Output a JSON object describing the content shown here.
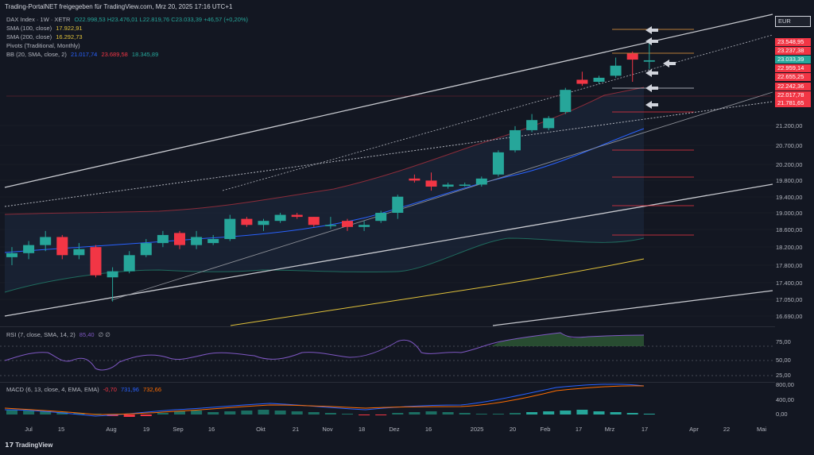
{
  "header": {
    "title": "Trading-PortalNET freigegeben für TradingView.com, Mrz 20, 2025 17:16 UTC+1"
  },
  "legend": {
    "symbol": "DAX Index · 1W · XETR",
    "ohlc": "O22.998,53 H23.476,01 L22.819,76 C23.033,39 +46,57 (+0,20%)",
    "sma100_label": "SMA (100, close)",
    "sma100_value": "17.922,91",
    "sma200_label": "SMA (200, close)",
    "sma200_value": "16.292,73",
    "pivots_label": "Pivots (Traditional, Monthly)",
    "bb_label": "BB (20, SMA, close, 2)",
    "bb_v1": "21.017,74",
    "bb_v2": "23.689,58",
    "bb_v3": "18.345,89"
  },
  "currency": "EUR",
  "price_axis": {
    "levels": [
      "21.200,00",
      "20.700,00",
      "20.200,00",
      "19.800,00",
      "19.400,00",
      "19.000,00",
      "18.600,00",
      "18.200,00",
      "17.800,00",
      "17.400,00",
      "17.050,00",
      "16.690,00"
    ],
    "tags": [
      "23.548,95",
      "23.237,38",
      "23.033,39",
      "22.959,14",
      "22.655,25",
      "22.242,36",
      "22.017,78",
      "21.781,65"
    ]
  },
  "time_axis": [
    "Jul",
    "15",
    "Aug",
    "19",
    "Sep",
    "16",
    "Okt",
    "21",
    "Nov",
    "18",
    "Dez",
    "16",
    "2025",
    "20",
    "Feb",
    "17",
    "Mrz",
    "17",
    "Apr",
    "22",
    "Mai"
  ],
  "rsi": {
    "label": "RSI (7, close, SMA, 14, 2)",
    "value": "85,40",
    "extra": "∅ ∅",
    "levels": [
      "75,00",
      "50,00",
      "25,00"
    ]
  },
  "macd": {
    "label": "MACD (6, 13, close, 4, EMA, EMA)",
    "v1": "-0,70",
    "v2": "731,96",
    "v3": "732,66",
    "levels": [
      "800,00",
      "400,00",
      "0,00"
    ]
  },
  "footer": {
    "brand": "TradingView"
  },
  "colors": {
    "bg": "#131722",
    "up": "#26a69a",
    "down": "#f23645",
    "grid": "#2a2e39",
    "sma100": "#e2c33b",
    "bb_mid": "#2962ff"
  },
  "chart_data": {
    "type": "candlestick",
    "timeframe": "1W",
    "price_range": [
      16690,
      23800
    ],
    "candles": [
      {
        "o": 18150,
        "h": 18400,
        "l": 17950,
        "c": 18250
      },
      {
        "o": 18250,
        "h": 18550,
        "l": 18100,
        "c": 18450
      },
      {
        "o": 18450,
        "h": 18800,
        "l": 18300,
        "c": 18650
      },
      {
        "o": 18650,
        "h": 18700,
        "l": 18100,
        "c": 18200
      },
      {
        "o": 18200,
        "h": 18500,
        "l": 18100,
        "c": 18350
      },
      {
        "o": 18400,
        "h": 18450,
        "l": 17650,
        "c": 17700
      },
      {
        "o": 17650,
        "h": 17900,
        "l": 17050,
        "c": 17800
      },
      {
        "o": 17800,
        "h": 18300,
        "l": 17750,
        "c": 18200
      },
      {
        "o": 18200,
        "h": 18600,
        "l": 18150,
        "c": 18500
      },
      {
        "o": 18500,
        "h": 18800,
        "l": 18400,
        "c": 18700
      },
      {
        "o": 18750,
        "h": 18800,
        "l": 18350,
        "c": 18450
      },
      {
        "o": 18450,
        "h": 18800,
        "l": 18350,
        "c": 18650
      },
      {
        "o": 18500,
        "h": 18700,
        "l": 18450,
        "c": 18600
      },
      {
        "o": 18600,
        "h": 19200,
        "l": 18550,
        "c": 19100
      },
      {
        "o": 19100,
        "h": 19150,
        "l": 18900,
        "c": 18950
      },
      {
        "o": 18950,
        "h": 19100,
        "l": 18800,
        "c": 19050
      },
      {
        "o": 19050,
        "h": 19250,
        "l": 19000,
        "c": 19200
      },
      {
        "o": 19200,
        "h": 19250,
        "l": 19100,
        "c": 19150
      },
      {
        "o": 19150,
        "h": 19150,
        "l": 18900,
        "c": 18950
      },
      {
        "o": 18950,
        "h": 19150,
        "l": 18850,
        "c": 18950
      },
      {
        "o": 19050,
        "h": 19100,
        "l": 18800,
        "c": 18900
      },
      {
        "o": 18900,
        "h": 19050,
        "l": 18800,
        "c": 18950
      },
      {
        "o": 19050,
        "h": 19300,
        "l": 19000,
        "c": 19250
      },
      {
        "o": 19250,
        "h": 19700,
        "l": 19100,
        "c": 19650
      },
      {
        "o": 20100,
        "h": 20200,
        "l": 20000,
        "c": 20050
      },
      {
        "o": 20050,
        "h": 20250,
        "l": 19800,
        "c": 19900
      },
      {
        "o": 19900,
        "h": 20000,
        "l": 19850,
        "c": 19950
      },
      {
        "o": 19950,
        "h": 20000,
        "l": 19900,
        "c": 19950
      },
      {
        "o": 19950,
        "h": 20150,
        "l": 19900,
        "c": 20100
      },
      {
        "o": 20200,
        "h": 20800,
        "l": 20150,
        "c": 20750
      },
      {
        "o": 20800,
        "h": 21400,
        "l": 20750,
        "c": 21300
      },
      {
        "o": 21300,
        "h": 21700,
        "l": 21250,
        "c": 21550
      },
      {
        "o": 21350,
        "h": 21650,
        "l": 21300,
        "c": 21600
      },
      {
        "o": 21750,
        "h": 22350,
        "l": 21700,
        "c": 22300
      },
      {
        "o": 22550,
        "h": 22750,
        "l": 22400,
        "c": 22450
      },
      {
        "o": 22500,
        "h": 22650,
        "l": 22450,
        "c": 22600
      },
      {
        "o": 22650,
        "h": 23100,
        "l": 22600,
        "c": 22900
      },
      {
        "o": 23200,
        "h": 23250,
        "l": 22500,
        "c": 23050
      },
      {
        "o": 22999,
        "h": 23476,
        "l": 22820,
        "c": 23033
      }
    ]
  }
}
